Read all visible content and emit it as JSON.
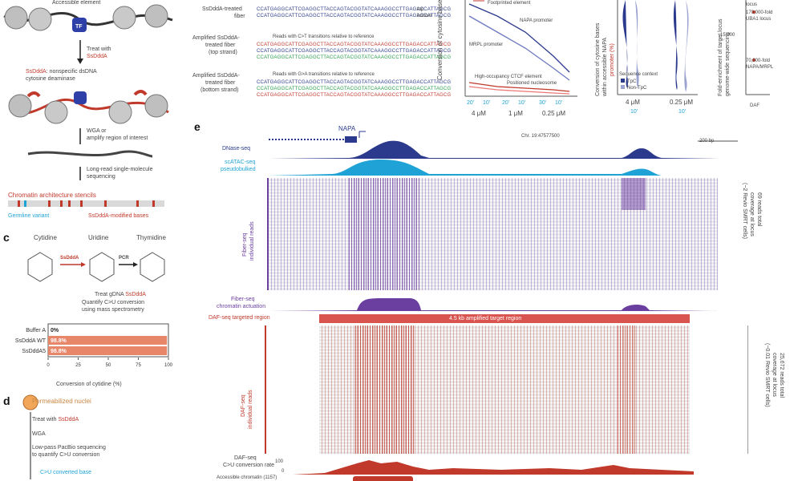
{
  "panel_a": {
    "accessible_element": "Accessible element",
    "tf": "TF",
    "treat_with": "Treat with",
    "sddda": "SsDddA",
    "enzyme_desc_1": ": nonspecific dsDNA",
    "enzyme_desc_2": "cytosine deaminase",
    "wga_1": "WGA or",
    "wga_2": "amplify region of interest",
    "seq_1": "Long-read single-molecule",
    "seq_2": "sequencing",
    "stencils": "Chromatin architecture stencils",
    "germline": "Germline variant",
    "modified": "SsDddA-modified bases"
  },
  "panel_b": {
    "label_treated_1": "SsDddA-treated",
    "label_treated_2": "fiber",
    "top": "top",
    "bottom": "bottom",
    "label_amp_top_1": "Amplified SsDddA-",
    "label_amp_top_2": "treated fiber",
    "label_amp_top_3": "(top strand)",
    "label_amp_bot_1": "Amplified SsDddA-",
    "label_amp_bot_2": "treated fiber",
    "label_amp_bot_3": "(bottom strand)",
    "reads_ct": "Reads with C>T transitions relative to reference",
    "reads_ga": "Reads with G>A transitions relative to reference",
    "seq_line": "CCATGAGGCATTCGAGGCTTACCAGTACGGTATCAAAGGCCTTGAGACCATTAGCG"
  },
  "panel_line": {
    "ylabel": "Conversion of cytosine bases",
    "legend_footprinted": "Footprinted element",
    "napa": "NAPA promoter",
    "mrpl": "MRPL promoter",
    "ctcf": "High-occupancy CTCF element",
    "nucleosome": "Positioned nucleosome",
    "x_ticks": [
      "20'",
      "10'",
      "20'",
      "10'",
      "30'",
      "10'"
    ],
    "conc": [
      "4 μM",
      "1 μM",
      "0.25 μM"
    ]
  },
  "panel_violin": {
    "ylabel_1": "Conversion of cytosine bases",
    "ylabel_2": "within accessible NAPA",
    "ylabel_3": "promoter (%)",
    "legend_title": "Sequence context",
    "legend_tpc": "TpC",
    "legend_nontpc": "Non-TpC",
    "conc": [
      "4 μM",
      "0.25 μM"
    ],
    "time": [
      "10'",
      "10'"
    ]
  },
  "panel_enrich": {
    "ylabel_1": "Fold-enrichment of target locus",
    "ylabel_2": "genome-wide sequencing",
    "tick": "15,000",
    "locus": "locus",
    "ann1_1": "170,000-fold",
    "ann1_2": "UBA1 locus",
    "ann2_1": "70,000-fold",
    "ann2_2": "NAPA/MRPL",
    "xlab": "DAF"
  },
  "panel_c": {
    "cytidine": "Cytidine",
    "uridine": "Uridine",
    "thymidine": "Thymidine",
    "sddda": "SsDddA",
    "pcr": "PCR",
    "treat": "Treat gDNA",
    "quant_1": "Quantify C>U conversion",
    "quant_2": "using mass spectrometry",
    "xlabel": "Conversion of cytidine (%)"
  },
  "chart_data": {
    "type": "bar",
    "categories": [
      "Buffer A",
      "SsDddA WT",
      "SsDddA5"
    ],
    "values": [
      0,
      98.8,
      98.8
    ],
    "labels": [
      "0%",
      "98.8%",
      "98.8%"
    ],
    "x_ticks": [
      "0",
      "25",
      "50",
      "75",
      "100"
    ],
    "xlabel": "Conversion of cytidine (%)",
    "xlim": [
      0,
      100
    ]
  },
  "panel_d": {
    "nuclei": "Permeabilized nuclei",
    "treat": "Treat with",
    "wga": "WGA",
    "lowpass_1": "Low-pass PacBio sequencing",
    "lowpass_2": "to quantify C>U conversion",
    "converted": "C>U converted base"
  },
  "panel_e": {
    "gene": "NAPA",
    "coords": "Chr. 19:47577500",
    "scale": "200 bp",
    "dnase": "DNase-seq",
    "scatac_1": "scATAC-seq",
    "scatac_2": "pseudobulked",
    "fiber_1": "Fiber-seq",
    "fiber_2": "individual reads",
    "fiber_right_1": "69 reads total",
    "fiber_right_2": "coverage at locus",
    "fiber_right_3": "(~2 Revio SMRT cells)",
    "fiber_act_1": "Fiber-seq",
    "fiber_act_2": "chromatin actuation",
    "daf_target": "DAF-seq targeted region",
    "amp_region": "4.5 kb amplified target region",
    "daf_1": "DAF-seq",
    "daf_2": "individual reads",
    "daf_right_1": "25,672 reads total",
    "daf_right_2": "coverage at locus",
    "daf_right_3": "(~0.01 Revio SMRT cells)",
    "conv_1": "DAF-seq",
    "conv_2": "C>U conversion rate",
    "conv_tick_top": "100",
    "conv_tick_bot": "0",
    "access": "Accessible chromatin (1157)"
  },
  "colors": {
    "red": "#c0392b",
    "navy": "#2b3a8c",
    "cyan": "#1fa3d6",
    "purple": "#6b3fa0",
    "bar": "#e8866a"
  }
}
